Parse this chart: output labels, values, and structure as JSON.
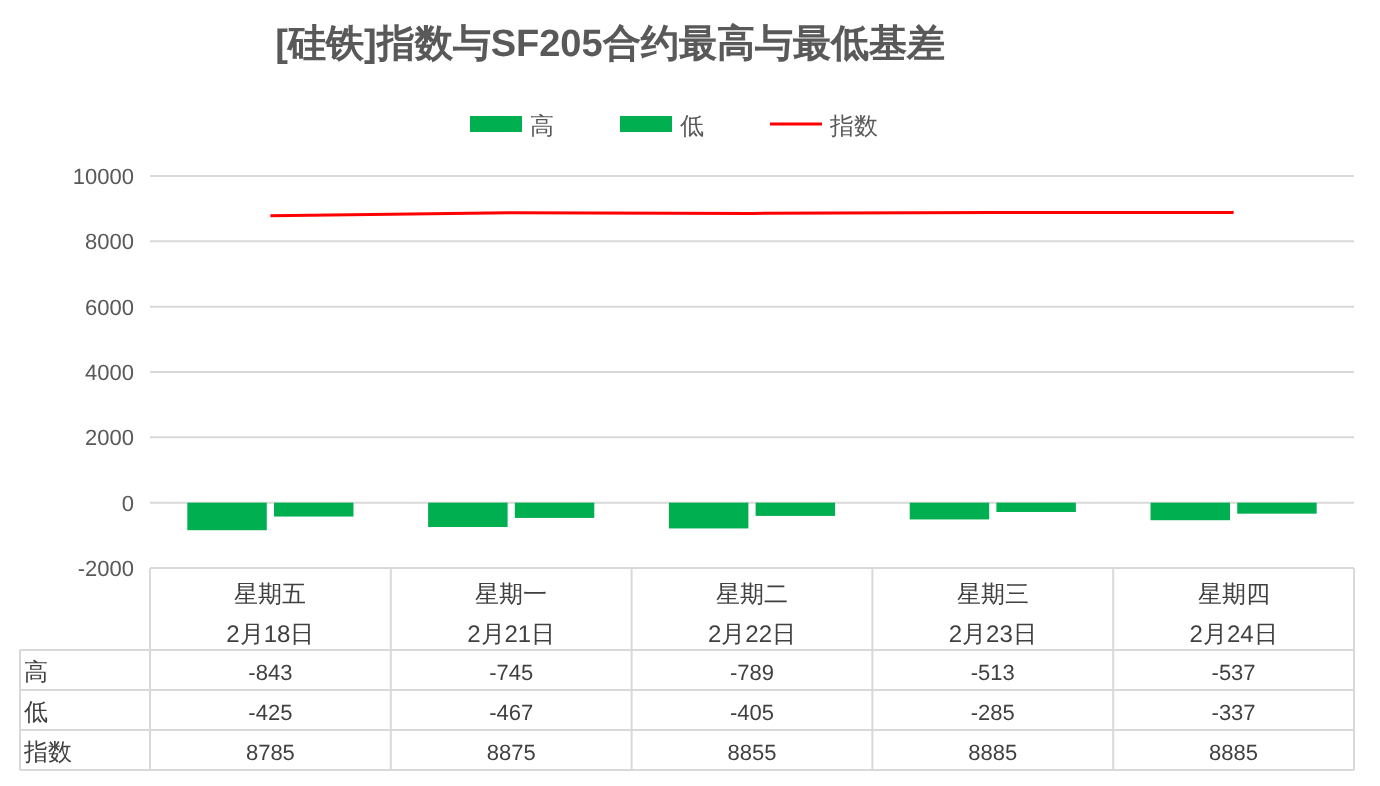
{
  "chart_data": {
    "type": "bar",
    "title": "[硅铁]指数与SF205合约最高与最低基差",
    "categories": [
      "星期五\n2月18日",
      "星期一\n2月21日",
      "星期二\n2月22日",
      "星期三\n2月23日",
      "星期四\n2月24日"
    ],
    "series": [
      {
        "name": "高",
        "color": "#00b050",
        "values": [
          -843,
          -745,
          -789,
          -513,
          -537
        ]
      },
      {
        "name": "低",
        "color": "#00b050",
        "values": [
          -425,
          -467,
          -405,
          -285,
          -337
        ]
      },
      {
        "type": "line",
        "color": "#ff0000",
        "name": "指数",
        "values": [
          8785,
          8875,
          8855,
          8885,
          8885
        ]
      }
    ],
    "ylim": [
      -2000,
      10000
    ],
    "yticks": [
      -2000,
      0,
      2000,
      4000,
      6000,
      8000,
      10000
    ],
    "grid": "y",
    "legend": "top",
    "data_labels": true
  }
}
